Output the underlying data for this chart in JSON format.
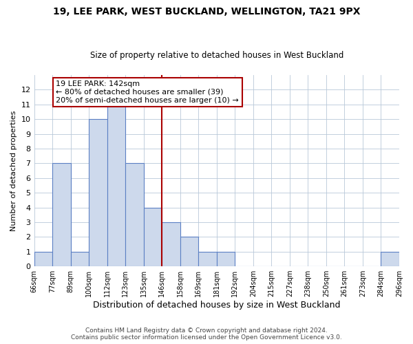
{
  "title": "19, LEE PARK, WEST BUCKLAND, WELLINGTON, TA21 9PX",
  "subtitle": "Size of property relative to detached houses in West Buckland",
  "xlabel": "Distribution of detached houses by size in West Buckland",
  "ylabel": "Number of detached properties",
  "bin_labels": [
    "66sqm",
    "77sqm",
    "89sqm",
    "100sqm",
    "112sqm",
    "123sqm",
    "135sqm",
    "146sqm",
    "158sqm",
    "169sqm",
    "181sqm",
    "192sqm",
    "204sqm",
    "215sqm",
    "227sqm",
    "238sqm",
    "250sqm",
    "261sqm",
    "273sqm",
    "284sqm",
    "296sqm"
  ],
  "bar_heights": [
    1,
    7,
    1,
    10,
    11,
    7,
    4,
    3,
    2,
    1,
    1,
    0,
    0,
    0,
    0,
    0,
    0,
    0,
    0,
    1
  ],
  "bar_color": "#cdd9ec",
  "bar_edge_color": "#5b7fc4",
  "reference_line_index": 7,
  "reference_line_color": "#aa0000",
  "ylim": [
    0,
    13
  ],
  "yticks": [
    0,
    1,
    2,
    3,
    4,
    5,
    6,
    7,
    8,
    9,
    10,
    11,
    12,
    13
  ],
  "annotation_title": "19 LEE PARK: 142sqm",
  "annotation_line1": "← 80% of detached houses are smaller (39)",
  "annotation_line2": "20% of semi-detached houses are larger (10) →",
  "annotation_box_color": "#ffffff",
  "annotation_box_edge": "#aa0000",
  "footer_line1": "Contains HM Land Registry data © Crown copyright and database right 2024.",
  "footer_line2": "Contains public sector information licensed under the Open Government Licence v3.0.",
  "background_color": "#ffffff",
  "grid_color": "#b8c8d8"
}
